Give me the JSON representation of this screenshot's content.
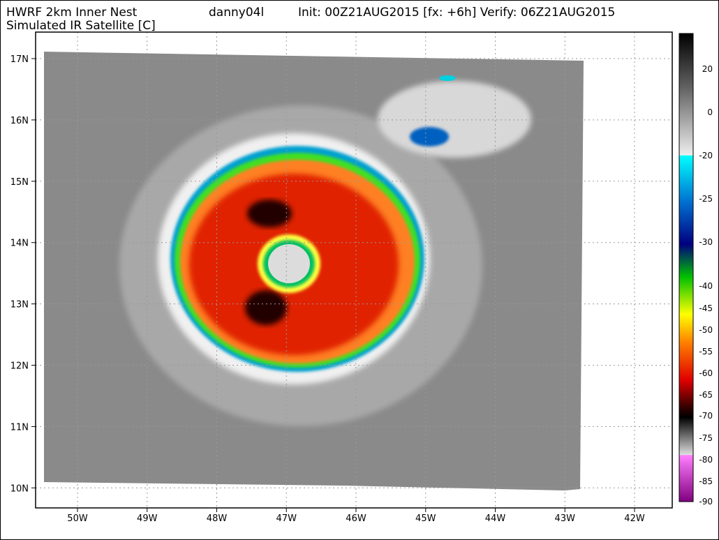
{
  "header": {
    "model": "HWRF 2km Inner Nest",
    "storm": "danny04l",
    "init": "Init: 00Z21AUG2015 [fx: +6h] Verify: 06Z21AUG2015",
    "product": "Simulated IR Satellite [C]"
  },
  "map": {
    "lon_labels": [
      "50W",
      "49W",
      "48W",
      "47W",
      "46W",
      "45W",
      "44W",
      "43W",
      "42W"
    ],
    "lat_labels": [
      "17N",
      "16N",
      "15N",
      "14N",
      "13N",
      "12N",
      "11N",
      "10N"
    ]
  },
  "colorbar": {
    "labels": [
      "20",
      "0",
      "-20",
      "-25",
      "-30",
      "-40",
      "-45",
      "-50",
      "-55",
      "-60",
      "-65",
      "-70",
      "-75",
      "-80",
      "-85",
      "-90"
    ]
  }
}
